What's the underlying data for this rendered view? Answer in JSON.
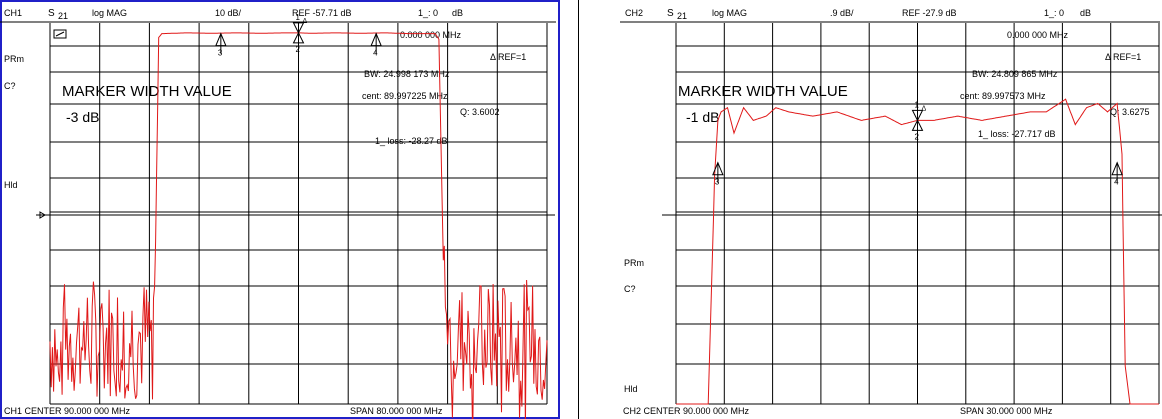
{
  "panels": [
    {
      "header": {
        "channel": "CH1",
        "param": "S",
        "param_sub": "21",
        "format": "log MAG",
        "scale": "10 dB/",
        "ref": "REF -57.71 dB",
        "marker_header": "1_: 0",
        "marker_unit": "dB"
      },
      "left_labels": [
        "PRm",
        "C?",
        "Hld"
      ],
      "small_box_label": "▭",
      "marker_freq": "0.000 000 MHz",
      "ref_label": "Δ REF=1",
      "title": "MARKER WIDTH VALUE",
      "width_value": "-3 dB",
      "readouts": {
        "bw": "BW:  24.998 173 MHz",
        "cent": "cent:  89.997225 MHz",
        "q": "Q: 3.6002",
        "loss": "1_ loss: -28.27  dB"
      },
      "footer": {
        "center": "CH1 CENTER   90.000 000 MHz",
        "span": "SPAN   80.000 000 MHz"
      },
      "marker_labels": [
        "1",
        "2",
        "3",
        "4"
      ]
    },
    {
      "header": {
        "channel": "CH2",
        "param": "S",
        "param_sub": "21",
        "format": "log MAG",
        "scale": ".9 dB/",
        "ref": "REF -27.9 dB",
        "marker_header": "1_: 0",
        "marker_unit": "dB"
      },
      "left_labels": [
        "PRm",
        "C?",
        "Hld"
      ],
      "marker_freq": "0.000 000 MHz",
      "ref_label": "Δ REF=1",
      "title": "MARKER WIDTH VALUE",
      "width_value": "-1 dB",
      "readouts": {
        "bw": "BW:  24.809 865 MHz",
        "cent": "cent:  89.997573 MHz",
        "q": "Q: 3.6275",
        "loss": "1_  loss: -27.717 dB"
      },
      "footer": {
        "center": "CH2 CENTER   90.000 000 MHz",
        "span": "SPAN   30.000 000 MHz"
      },
      "marker_labels": [
        "1",
        "2",
        "3",
        "4"
      ]
    }
  ],
  "chart_data": [
    {
      "type": "line",
      "x_unit": "MHz",
      "y_unit": "dB",
      "xlim": [
        50,
        130
      ],
      "ylim": [
        -157.71,
        -57.71
      ],
      "grid": true,
      "trace_color": "#e01818",
      "series": [
        {
          "x": [
            50,
            66.5,
            67.0,
            67.5,
            68,
            72,
            76,
            80,
            84,
            88,
            90,
            92,
            96,
            100,
            104,
            108,
            112,
            112.6,
            113.3,
            114,
            130
          ],
          "y": [
            -141,
            -140,
            -115,
            -61.5,
            -60.5,
            -60.3,
            -60.4,
            -60.3,
            -60.4,
            -60.3,
            -60.3,
            -60.4,
            -60.3,
            -60.4,
            -60.3,
            -60.5,
            -60.5,
            -62,
            -120,
            -141,
            -141
          ]
        }
      ],
      "markers": [
        {
          "id": "1",
          "x": 90.0,
          "y": -60.3
        },
        {
          "id": "2",
          "x": 90.0,
          "y": -60.3
        },
        {
          "id": "3",
          "x": 77.5,
          "y": -60.5
        },
        {
          "id": "4",
          "x": 102.5,
          "y": -60.5
        }
      ]
    },
    {
      "type": "line",
      "x_unit": "MHz",
      "y_unit": "dB",
      "xlim": [
        75,
        105
      ],
      "ylim": [
        -36.9,
        -27.9
      ],
      "grid": true,
      "trace_color": "#e01818",
      "series": [
        {
          "x": [
            75,
            77.0,
            77.4,
            77.6,
            77.8,
            78.2,
            78.6,
            79.2,
            79.8,
            80.6,
            81.2,
            82.0,
            83.5,
            85.0,
            86.5,
            88.0,
            89.0,
            90.0,
            91.0,
            92.5,
            94.0,
            95.5,
            97.0,
            98.0,
            99.2,
            99.8,
            100.5,
            101.2,
            101.8,
            102.4,
            102.7,
            102.9,
            103.2,
            105
          ],
          "y": [
            -36.9,
            -36.9,
            -31.5,
            -30.2,
            -30.0,
            -29.9,
            -30.5,
            -29.9,
            -30.2,
            -30.1,
            -29.9,
            -30.0,
            -30.1,
            -30.0,
            -30.2,
            -30.1,
            -30.3,
            -30.2,
            -30.2,
            -30.1,
            -30.2,
            -30.1,
            -30.0,
            -30.0,
            -29.7,
            -30.3,
            -29.9,
            -29.8,
            -30.0,
            -29.8,
            -31.0,
            -36.0,
            -36.9,
            -36.9
          ]
        }
      ],
      "markers": [
        {
          "id": "1",
          "x": 90.0,
          "y": -30.2
        },
        {
          "id": "2",
          "x": 90.0,
          "y": -30.2
        },
        {
          "id": "3",
          "x": 77.6,
          "y": -31.2
        },
        {
          "id": "4",
          "x": 102.4,
          "y": -31.2
        }
      ]
    }
  ]
}
